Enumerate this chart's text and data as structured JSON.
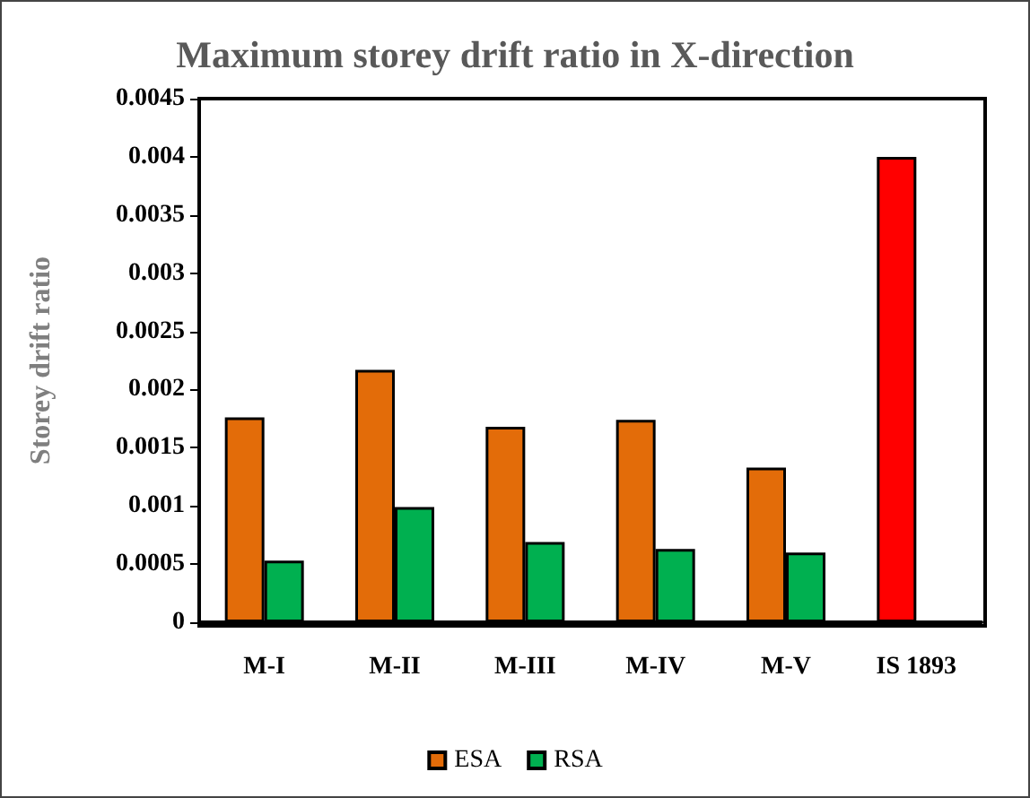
{
  "chart_data": {
    "type": "bar",
    "title": "Maximum storey drift ratio in X-direction",
    "ylabel": "Storey drift ratio",
    "categories": [
      "M-I",
      "M-II",
      "M-III",
      "M-IV",
      "M-V",
      "IS 1893"
    ],
    "series": [
      {
        "name": "ESA",
        "color": "#e36c09",
        "colors": [
          "#e36c09",
          "#e36c09",
          "#e36c09",
          "#e36c09",
          "#e36c09",
          "#ff0000"
        ],
        "values": [
          0.00176,
          0.00217,
          0.00168,
          0.00174,
          0.00133,
          0.004
        ]
      },
      {
        "name": "RSA",
        "color": "#00b050",
        "values": [
          0.00053,
          0.00099,
          0.00069,
          0.00063,
          0.0006,
          null
        ]
      }
    ],
    "ylim": [
      0,
      0.0045
    ],
    "yticks": [
      0,
      0.0005,
      0.001,
      0.0015,
      0.002,
      0.0025,
      0.003,
      0.0035,
      0.004,
      0.0045
    ],
    "grid": false,
    "legend": "bottom"
  }
}
